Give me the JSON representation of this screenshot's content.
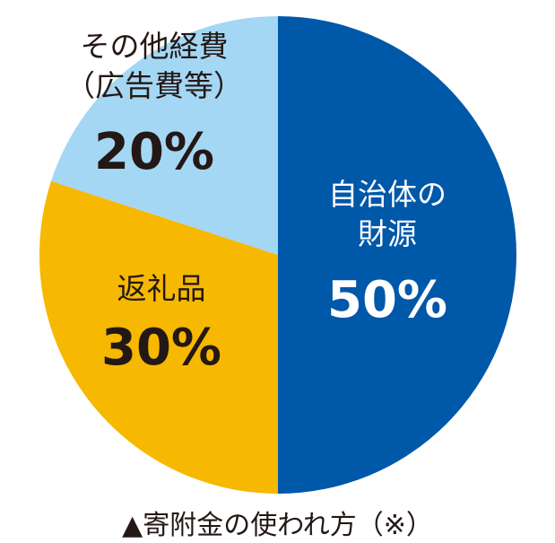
{
  "chart_data": {
    "type": "pie",
    "title": "▲寄附金の使われ方（※）",
    "categories": [
      "自治体の\n財源",
      "返礼品",
      "その他経費\n（広告費等）"
    ],
    "values": [
      50,
      30,
      20
    ],
    "value_labels": [
      "50%",
      "30%",
      "20%"
    ],
    "colors": [
      "#0058a9",
      "#f6b800",
      "#a4d7f4"
    ],
    "text_colors": [
      "#ffffff",
      "#231815",
      "#231815"
    ]
  }
}
